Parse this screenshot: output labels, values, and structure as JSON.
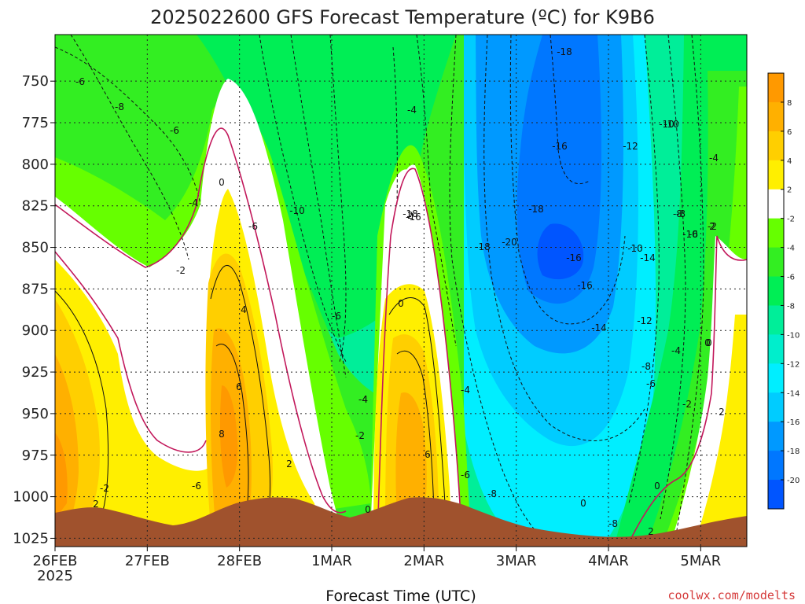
{
  "chart_data": {
    "type": "heatmap",
    "title": "2025022600 GFS Forecast Temperature (ºC) for K9B6",
    "xlabel": "Forecast Time (UTC)",
    "ylabel": "",
    "credit": "coolwx.com/modelts",
    "grid": true,
    "legend_position": "right",
    "x_ticks": [
      "26FEB",
      "27FEB",
      "28FEB",
      "1MAR",
      "2MAR",
      "3MAR",
      "4MAR",
      "5MAR"
    ],
    "x_year_label": "2025",
    "xlim_days": [
      0,
      7.5
    ],
    "y_ticks": [
      "750",
      "775",
      "800",
      "825",
      "850",
      "875",
      "900",
      "925",
      "950",
      "975",
      "1000",
      "1025"
    ],
    "ylim_hpa": [
      1030,
      722
    ],
    "colorbar": {
      "tick_labels": [
        "8",
        "6",
        "4",
        "2",
        "-2",
        "-4",
        "-6",
        "-8",
        "-10",
        "-12",
        "-14",
        "-16",
        "-18",
        "-20"
      ],
      "bands": [
        {
          "range": "8 to 10",
          "color": "#ff9900"
        },
        {
          "range": "6 to 8",
          "color": "#ffb000"
        },
        {
          "range": "4 to 6",
          "color": "#ffcf00"
        },
        {
          "range": "2 to 4",
          "color": "#ffef00"
        },
        {
          "range": "-2 to 2",
          "color": "#ffffff"
        },
        {
          "range": "-4 to -2",
          "color": "#66ff00"
        },
        {
          "range": "-6 to -4",
          "color": "#33ee22"
        },
        {
          "range": "-8 to -6",
          "color": "#00ee55"
        },
        {
          "range": "-10 to -8",
          "color": "#00ee99"
        },
        {
          "range": "-12 to -10",
          "color": "#00eecc"
        },
        {
          "range": "-14 to -12",
          "color": "#00eeff"
        },
        {
          "range": "-16 to -14",
          "color": "#00ccff"
        },
        {
          "range": "-18 to -16",
          "color": "#0099ff"
        },
        {
          "range": "-20 to -18",
          "color": "#0077ff"
        },
        {
          "range": "below -20",
          "color": "#0055ff"
        }
      ]
    },
    "terrain_color": "#a0522d",
    "freezing_line_color": "#c2185b",
    "contour_labels": [
      "-6",
      "-8",
      "-6",
      "-4",
      "-2",
      "-2",
      "2",
      "0",
      "-6",
      "-10",
      "-6",
      "-4",
      "-2",
      "0",
      "-18",
      "-16",
      "-18",
      "-16",
      "-18",
      "-20",
      "-18",
      "-16",
      "-16",
      "-14",
      "-12",
      "-10",
      "-14",
      "-12",
      "-10",
      "-8",
      "-10",
      "-8",
      "-6",
      "-4",
      "-2",
      "0",
      "2",
      "-10",
      "-8",
      "-6",
      "-4",
      "-2",
      "0",
      "2",
      "0",
      "2",
      "4",
      "6",
      "8",
      "2",
      "6",
      "0",
      "2",
      "-6",
      "-4",
      "-6",
      "-8",
      "-4",
      "-8",
      "0",
      "-4"
    ]
  }
}
